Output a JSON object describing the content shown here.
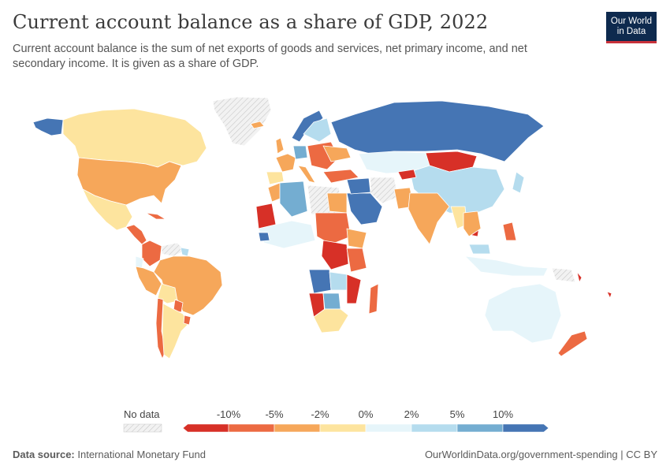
{
  "header": {
    "title": "Current account balance as a share of GDP, 2022",
    "subtitle": "Current account balance is the sum of net exports of goods and services, net primary income, and net secondary income. It is given as a share of GDP."
  },
  "logo": {
    "line1": "Our World",
    "line2": "in Data"
  },
  "legend": {
    "no_data_label": "No data",
    "ticks": [
      "-10%",
      "-5%",
      "-2%",
      "0%",
      "2%",
      "5%",
      "10%"
    ],
    "colors": [
      "#d73027",
      "#ec6a42",
      "#f6a75a",
      "#fde49e",
      "#e6f5fa",
      "#b5dcee",
      "#74add1",
      "#4575b4"
    ]
  },
  "footer": {
    "source_label": "Data source:",
    "source": "International Monetary Fund",
    "url": "OurWorldinData.org/government-spending | CC BY"
  },
  "colors": {
    "neg_large": "#d73027",
    "neg_mid": "#ec6a42",
    "neg_small": "#f6a75a",
    "neg_tiny": "#fde49e",
    "pos_tiny": "#e6f5fa",
    "pos_small": "#b5dcee",
    "pos_mid": "#74add1",
    "pos_large": "#4575b4",
    "no_data": "#e8e8e8",
    "border": "#ffffff"
  }
}
